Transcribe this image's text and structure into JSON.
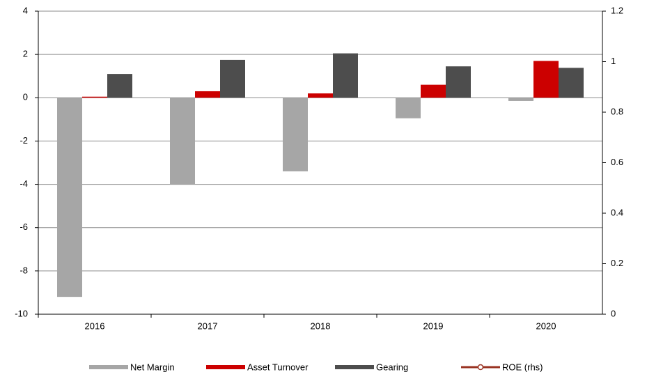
{
  "chart_data": {
    "type": "bar",
    "categories": [
      "2016",
      "2017",
      "2018",
      "2019",
      "2020"
    ],
    "series": [
      {
        "name": "Net Margin",
        "color": "#a6a6a6",
        "values": [
          -9.2,
          -4.0,
          -3.4,
          -0.95,
          -0.15
        ]
      },
      {
        "name": "Asset Turnover",
        "color": "#cc0000",
        "values": [
          0.05,
          0.3,
          0.2,
          0.6,
          1.7
        ]
      },
      {
        "name": "Gearing",
        "color": "#4d4d4d",
        "values": [
          1.1,
          1.75,
          2.05,
          1.45,
          1.38
        ]
      },
      {
        "name": "ROE (rhs)",
        "color": "#993322",
        "type": "line",
        "axis": "y2",
        "values": [
          null,
          null,
          null,
          null,
          null
        ]
      }
    ],
    "ylim": [
      -10,
      4
    ],
    "yticks": [
      -10,
      -8,
      -6,
      -4,
      -2,
      0,
      2,
      4
    ],
    "y2lim": [
      0,
      1.2
    ],
    "y2ticks": [
      0,
      0.2,
      0.4,
      0.6,
      0.8,
      1,
      1.2
    ],
    "grid": true,
    "legend": "bottom"
  }
}
